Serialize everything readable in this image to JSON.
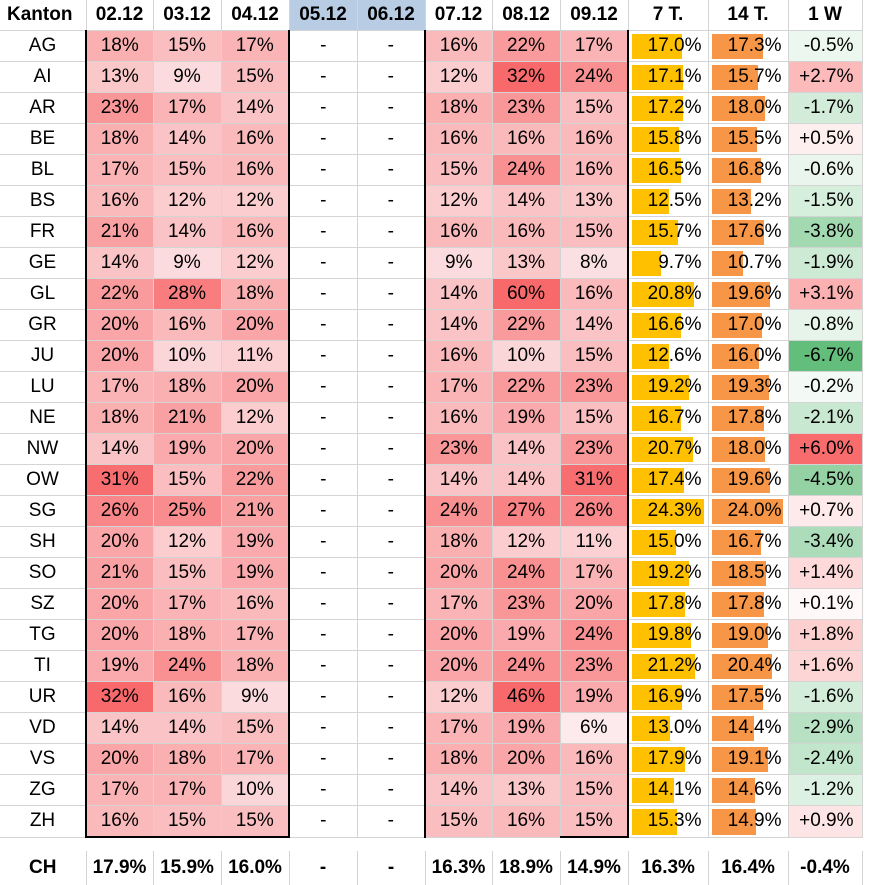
{
  "headers": [
    "Kanton",
    "02.12",
    "03.12",
    "04.12",
    "05.12",
    "06.12",
    "07.12",
    "08.12",
    "09.12",
    "7 T.",
    "14 T.",
    "1 W"
  ],
  "colors": {
    "header_blue": "#b8cce4",
    "bar_7t": "#ffc000",
    "bar_14t": "#f79646",
    "heat_high": "#f8696b",
    "heat_low": "#fcfcff",
    "delta_neg": "#63be7b",
    "delta_pos": "#f8696b"
  },
  "rows": [
    {
      "k": "AG",
      "d": [
        "18%",
        "15%",
        "17%",
        "-",
        "-",
        "16%",
        "22%",
        "17%"
      ],
      "t7": "17.0%",
      "t14": "17.3%",
      "w": "-0.5%"
    },
    {
      "k": "AI",
      "d": [
        "13%",
        "9%",
        "15%",
        "-",
        "-",
        "12%",
        "32%",
        "24%"
      ],
      "t7": "17.1%",
      "t14": "15.7%",
      "w": "+2.7%"
    },
    {
      "k": "AR",
      "d": [
        "23%",
        "17%",
        "14%",
        "-",
        "-",
        "18%",
        "23%",
        "15%"
      ],
      "t7": "17.2%",
      "t14": "18.0%",
      "w": "-1.7%"
    },
    {
      "k": "BE",
      "d": [
        "18%",
        "14%",
        "16%",
        "-",
        "-",
        "16%",
        "16%",
        "16%"
      ],
      "t7": "15.8%",
      "t14": "15.5%",
      "w": "+0.5%"
    },
    {
      "k": "BL",
      "d": [
        "17%",
        "15%",
        "16%",
        "-",
        "-",
        "15%",
        "24%",
        "16%"
      ],
      "t7": "16.5%",
      "t14": "16.8%",
      "w": "-0.6%"
    },
    {
      "k": "BS",
      "d": [
        "16%",
        "12%",
        "12%",
        "-",
        "-",
        "12%",
        "14%",
        "13%"
      ],
      "t7": "12.5%",
      "t14": "13.2%",
      "w": "-1.5%"
    },
    {
      "k": "FR",
      "d": [
        "21%",
        "14%",
        "16%",
        "-",
        "-",
        "16%",
        "16%",
        "15%"
      ],
      "t7": "15.7%",
      "t14": "17.6%",
      "w": "-3.8%"
    },
    {
      "k": "GE",
      "d": [
        "14%",
        "9%",
        "12%",
        "-",
        "-",
        "9%",
        "13%",
        "8%"
      ],
      "t7": "9.7%",
      "t14": "10.7%",
      "w": "-1.9%"
    },
    {
      "k": "GL",
      "d": [
        "22%",
        "28%",
        "18%",
        "-",
        "-",
        "14%",
        "60%",
        "16%"
      ],
      "t7": "20.8%",
      "t14": "19.6%",
      "w": "+3.1%"
    },
    {
      "k": "GR",
      "d": [
        "20%",
        "16%",
        "20%",
        "-",
        "-",
        "14%",
        "22%",
        "14%"
      ],
      "t7": "16.6%",
      "t14": "17.0%",
      "w": "-0.8%"
    },
    {
      "k": "JU",
      "d": [
        "20%",
        "10%",
        "11%",
        "-",
        "-",
        "16%",
        "10%",
        "15%"
      ],
      "t7": "12.6%",
      "t14": "16.0%",
      "w": "-6.7%"
    },
    {
      "k": "LU",
      "d": [
        "17%",
        "18%",
        "20%",
        "-",
        "-",
        "17%",
        "22%",
        "23%"
      ],
      "t7": "19.2%",
      "t14": "19.3%",
      "w": "-0.2%"
    },
    {
      "k": "NE",
      "d": [
        "18%",
        "21%",
        "12%",
        "-",
        "-",
        "16%",
        "19%",
        "15%"
      ],
      "t7": "16.7%",
      "t14": "17.8%",
      "w": "-2.1%"
    },
    {
      "k": "NW",
      "d": [
        "14%",
        "19%",
        "20%",
        "-",
        "-",
        "23%",
        "14%",
        "23%"
      ],
      "t7": "20.7%",
      "t14": "18.0%",
      "w": "+6.0%"
    },
    {
      "k": "OW",
      "d": [
        "31%",
        "15%",
        "22%",
        "-",
        "-",
        "14%",
        "14%",
        "31%"
      ],
      "t7": "17.4%",
      "t14": "19.6%",
      "w": "-4.5%"
    },
    {
      "k": "SG",
      "d": [
        "26%",
        "25%",
        "21%",
        "-",
        "-",
        "24%",
        "27%",
        "26%"
      ],
      "t7": "24.3%",
      "t14": "24.0%",
      "w": "+0.7%"
    },
    {
      "k": "SH",
      "d": [
        "20%",
        "12%",
        "19%",
        "-",
        "-",
        "18%",
        "12%",
        "11%"
      ],
      "t7": "15.0%",
      "t14": "16.7%",
      "w": "-3.4%"
    },
    {
      "k": "SO",
      "d": [
        "21%",
        "15%",
        "19%",
        "-",
        "-",
        "20%",
        "24%",
        "17%"
      ],
      "t7": "19.2%",
      "t14": "18.5%",
      "w": "+1.4%"
    },
    {
      "k": "SZ",
      "d": [
        "20%",
        "17%",
        "16%",
        "-",
        "-",
        "17%",
        "23%",
        "20%"
      ],
      "t7": "17.8%",
      "t14": "17.8%",
      "w": "+0.1%"
    },
    {
      "k": "TG",
      "d": [
        "20%",
        "18%",
        "17%",
        "-",
        "-",
        "20%",
        "19%",
        "24%"
      ],
      "t7": "19.8%",
      "t14": "19.0%",
      "w": "+1.8%"
    },
    {
      "k": "TI",
      "d": [
        "19%",
        "24%",
        "18%",
        "-",
        "-",
        "20%",
        "24%",
        "23%"
      ],
      "t7": "21.2%",
      "t14": "20.4%",
      "w": "+1.6%"
    },
    {
      "k": "UR",
      "d": [
        "32%",
        "16%",
        "9%",
        "-",
        "-",
        "12%",
        "46%",
        "19%"
      ],
      "t7": "16.9%",
      "t14": "17.5%",
      "w": "-1.6%"
    },
    {
      "k": "VD",
      "d": [
        "14%",
        "14%",
        "15%",
        "-",
        "-",
        "17%",
        "19%",
        "6%"
      ],
      "t7": "13.0%",
      "t14": "14.4%",
      "w": "-2.9%"
    },
    {
      "k": "VS",
      "d": [
        "20%",
        "18%",
        "17%",
        "-",
        "-",
        "18%",
        "20%",
        "16%"
      ],
      "t7": "17.9%",
      "t14": "19.1%",
      "w": "-2.4%"
    },
    {
      "k": "ZG",
      "d": [
        "17%",
        "17%",
        "10%",
        "-",
        "-",
        "14%",
        "13%",
        "15%"
      ],
      "t7": "14.1%",
      "t14": "14.6%",
      "w": "-1.2%"
    },
    {
      "k": "ZH",
      "d": [
        "16%",
        "15%",
        "15%",
        "-",
        "-",
        "15%",
        "16%",
        "15%"
      ],
      "t7": "15.3%",
      "t14": "14.9%",
      "w": "+0.9%"
    }
  ],
  "total": {
    "k": "CH",
    "d": [
      "17.9%",
      "15.9%",
      "16.0%",
      "-",
      "-",
      "16.3%",
      "18.9%",
      "14.9%"
    ],
    "t7": "16.3%",
    "t14": "16.4%",
    "w": "-0.4%"
  }
}
